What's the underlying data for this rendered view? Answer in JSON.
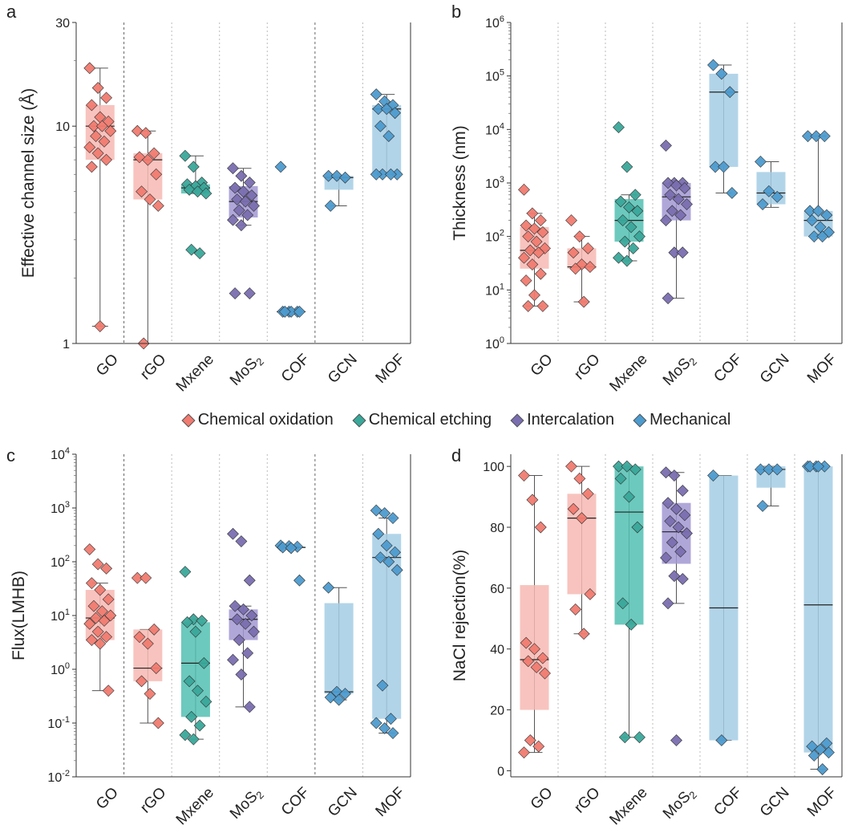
{
  "colors": {
    "chemical_oxidation": "#f07b70",
    "chemical_etching": "#3aa89a",
    "intercalation": "#7a6eb0",
    "mechanical": "#4d9bcf",
    "box_chemical_oxidation": "#f7b8b3",
    "box_chemical_etching": "#52bfb1",
    "box_intercalation": "#a298d2",
    "box_mechanical": "#a5cde4"
  },
  "legend": [
    {
      "label": "Chemical oxidation",
      "method": "chemical_oxidation"
    },
    {
      "label": "Chemical etching",
      "method": "chemical_etching"
    },
    {
      "label": "Intercalation",
      "method": "intercalation"
    },
    {
      "label": "Mechanical",
      "method": "mechanical"
    }
  ],
  "chart_data": [
    {
      "panel": "a",
      "type": "box",
      "ylabel": "Effective channel size (Å)",
      "yscale": "log",
      "ylim": [
        1,
        30
      ],
      "yticks": [
        {
          "v": 1,
          "label": "1"
        },
        {
          "v": 10,
          "label": "10"
        },
        {
          "v": 30,
          "label": "30"
        }
      ],
      "categories": [
        "GO",
        "rGO",
        "Mxene",
        "MoS2",
        "COF",
        "GCN",
        "MOF"
      ],
      "category_methods": [
        "chemical_oxidation",
        "chemical_oxidation",
        "chemical_etching",
        "intercalation",
        "mechanical",
        "mechanical",
        "mechanical"
      ],
      "separators": [
        {
          "after": 0,
          "style": "dashed"
        },
        {
          "after": 1,
          "style": "dotted"
        },
        {
          "after": 2,
          "style": "dotted"
        },
        {
          "after": 3,
          "style": "dotted"
        },
        {
          "after": 4,
          "style": "dashed"
        },
        {
          "after": 5,
          "style": "dotted"
        }
      ],
      "series": [
        {
          "box": [
            7.0,
            10.0,
            12.5
          ],
          "whisker": [
            1.2,
            18.5
          ],
          "points": [
            18.5,
            15.0,
            13.5,
            12.5,
            11.0,
            10.5,
            10.0,
            10.0,
            9.5,
            9.0,
            8.5,
            8.0,
            7.5,
            7.0,
            6.5,
            1.2
          ]
        },
        {
          "box": [
            4.6,
            7.0,
            7.5
          ],
          "whisker": [
            1.0,
            9.5
          ],
          "points": [
            9.5,
            9.3,
            7.5,
            7.2,
            7.0,
            6.0,
            5.0,
            4.6,
            4.3,
            1.0
          ]
        },
        {
          "box": [
            4.9,
            5.2,
            5.4
          ],
          "whisker": [
            4.9,
            7.3
          ],
          "points": [
            7.3,
            6.5,
            5.5,
            5.4,
            5.3,
            5.2,
            5.1,
            5.0,
            4.9,
            2.7,
            2.6
          ]
        },
        {
          "box": [
            3.8,
            4.5,
            5.3
          ],
          "whisker": [
            3.5,
            6.4
          ],
          "points": [
            6.4,
            5.9,
            5.5,
            5.2,
            5.0,
            4.8,
            4.6,
            4.5,
            4.3,
            4.1,
            3.9,
            3.7,
            3.5,
            1.7,
            1.7
          ]
        },
        {
          "box": [
            1.4,
            1.4,
            1.4
          ],
          "whisker": [
            1.4,
            1.4
          ],
          "points": [
            6.5,
            1.4,
            1.4,
            1.4,
            1.4,
            1.4,
            1.4
          ]
        },
        {
          "box": [
            5.1,
            5.8,
            5.9
          ],
          "whisker": [
            4.3,
            5.9
          ],
          "points": [
            5.9,
            5.9,
            5.8,
            4.3
          ]
        },
        {
          "box": [
            6.0,
            12.0,
            12.5
          ],
          "whisker": [
            6.0,
            14.0
          ],
          "points": [
            14.0,
            13.0,
            12.5,
            12.0,
            12.0,
            11.5,
            10.0,
            9.0,
            6.0,
            6.0,
            6.0,
            6.0
          ]
        }
      ]
    },
    {
      "panel": "b",
      "type": "box",
      "ylabel": "Thickness (nm)",
      "yscale": "log",
      "ylim": [
        1,
        1000000
      ],
      "yticks": [
        {
          "v": 1,
          "label": "10",
          "exp": "0"
        },
        {
          "v": 10,
          "label": "10",
          "exp": "1"
        },
        {
          "v": 100,
          "label": "10",
          "exp": "2"
        },
        {
          "v": 1000,
          "label": "10",
          "exp": "3"
        },
        {
          "v": 10000,
          "label": "10",
          "exp": "4"
        },
        {
          "v": 100000,
          "label": "10",
          "exp": "5"
        },
        {
          "v": 1000000,
          "label": "10",
          "exp": "6"
        }
      ],
      "categories": [
        "GO",
        "rGO",
        "Mxene",
        "MoS2",
        "COF",
        "GCN",
        "MOF"
      ],
      "category_methods": [
        "chemical_oxidation",
        "chemical_oxidation",
        "chemical_etching",
        "intercalation",
        "mechanical",
        "mechanical",
        "mechanical"
      ],
      "separators": [
        {
          "after": 0,
          "style": "dotted"
        },
        {
          "after": 1,
          "style": "dotted"
        },
        {
          "after": 2,
          "style": "dotted"
        },
        {
          "after": 3,
          "style": "dotted"
        },
        {
          "after": 4,
          "style": "dotted"
        },
        {
          "after": 5,
          "style": "dotted"
        }
      ],
      "series": [
        {
          "box": [
            25,
            55,
            150
          ],
          "whisker": [
            5,
            270
          ],
          "points": [
            750,
            270,
            200,
            160,
            140,
            120,
            100,
            80,
            60,
            55,
            50,
            40,
            30,
            20,
            15,
            8,
            5,
            5
          ]
        },
        {
          "box": [
            25,
            27,
            60
          ],
          "whisker": [
            6,
            100
          ],
          "points": [
            200,
            100,
            60,
            50,
            30,
            27,
            25,
            6
          ]
        },
        {
          "box": [
            80,
            200,
            500
          ],
          "whisker": [
            35,
            600
          ],
          "points": [
            11000,
            2000,
            600,
            450,
            350,
            300,
            200,
            150,
            100,
            80,
            60,
            40,
            35
          ]
        },
        {
          "box": [
            200,
            550,
            1000
          ],
          "whisker": [
            7,
            1000
          ],
          "points": [
            5000,
            1000,
            1000,
            1000,
            900,
            800,
            600,
            500,
            400,
            300,
            250,
            200,
            50,
            50,
            7
          ]
        },
        {
          "box": [
            2000,
            50000,
            110000
          ],
          "whisker": [
            650,
            160000
          ],
          "points": [
            160000,
            110000,
            50000,
            2000,
            2000,
            650
          ]
        },
        {
          "box": [
            400,
            650,
            1600
          ],
          "whisker": [
            350,
            2500
          ],
          "points": [
            2500,
            700,
            550,
            400
          ]
        },
        {
          "box": [
            100,
            200,
            300
          ],
          "whisker": [
            100,
            7500
          ],
          "points": [
            7500,
            7500,
            7500,
            300,
            300,
            250,
            200,
            150,
            120,
            100,
            100
          ]
        }
      ]
    },
    {
      "panel": "c",
      "type": "box",
      "ylabel": "Flux(LMHB)",
      "yscale": "log",
      "ylim": [
        0.01,
        10000
      ],
      "yticks": [
        {
          "v": 0.01,
          "label": "10",
          "exp": "-2"
        },
        {
          "v": 0.1,
          "label": "10",
          "exp": "-1"
        },
        {
          "v": 1,
          "label": "10",
          "exp": "0"
        },
        {
          "v": 10,
          "label": "10",
          "exp": "1"
        },
        {
          "v": 100,
          "label": "10",
          "exp": "2"
        },
        {
          "v": 1000,
          "label": "10",
          "exp": "3"
        },
        {
          "v": 10000,
          "label": "10",
          "exp": "4"
        }
      ],
      "categories": [
        "GO",
        "rGO",
        "Mxene",
        "MoS2",
        "COF",
        "GCN",
        "MOF"
      ],
      "category_methods": [
        "chemical_oxidation",
        "chemical_oxidation",
        "chemical_etching",
        "intercalation",
        "mechanical",
        "mechanical",
        "mechanical"
      ],
      "separators": [
        {
          "after": 0,
          "style": "dashed"
        },
        {
          "after": 1,
          "style": "dotted"
        },
        {
          "after": 2,
          "style": "dotted"
        },
        {
          "after": 3,
          "style": "dotted"
        },
        {
          "after": 4,
          "style": "dashed"
        },
        {
          "after": 5,
          "style": "dotted"
        }
      ],
      "series": [
        {
          "box": [
            3.5,
            9,
            30
          ],
          "whisker": [
            0.4,
            40
          ],
          "points": [
            170,
            90,
            75,
            40,
            30,
            20,
            15,
            12,
            10,
            9,
            8,
            7,
            5,
            4,
            3.5,
            3,
            0.4
          ]
        },
        {
          "box": [
            0.6,
            1.05,
            5.5
          ],
          "whisker": [
            0.1,
            5.5
          ],
          "points": [
            50,
            50,
            5.5,
            4,
            3,
            1.05,
            0.6,
            0.35,
            0.1
          ]
        },
        {
          "box": [
            0.13,
            1.3,
            7.5
          ],
          "whisker": [
            0.05,
            8.5
          ],
          "points": [
            65,
            8.5,
            8,
            7.5,
            5,
            1.3,
            0.6,
            0.4,
            0.25,
            0.13,
            0.09,
            0.06,
            0.05
          ]
        },
        {
          "box": [
            3.5,
            8.5,
            13
          ],
          "whisker": [
            0.2,
            15
          ],
          "points": [
            330,
            240,
            45,
            15,
            13,
            10,
            8.5,
            7,
            5,
            3.5,
            2,
            1.5,
            0.8,
            0.2
          ]
        },
        {
          "box": [
            180,
            185,
            190
          ],
          "whisker": [
            180,
            190
          ],
          "points": [
            200,
            195,
            190,
            185,
            180,
            45
          ]
        },
        {
          "box": [
            0.35,
            0.38,
            17
          ],
          "whisker": [
            0.27,
            33
          ],
          "points": [
            33,
            0.38,
            0.35,
            0.3,
            0.27
          ]
        },
        {
          "box": [
            0.12,
            120,
            330
          ],
          "whisker": [
            0.065,
            650
          ],
          "points": [
            900,
            800,
            650,
            330,
            200,
            150,
            120,
            100,
            70,
            0.5,
            0.12,
            0.1,
            0.08,
            0.065
          ]
        }
      ]
    },
    {
      "panel": "d",
      "type": "box",
      "ylabel": "NaCl rejection(%)",
      "yscale": "linear",
      "ylim": [
        -2,
        104
      ],
      "yticks": [
        {
          "v": 0,
          "label": "0"
        },
        {
          "v": 20,
          "label": "20"
        },
        {
          "v": 40,
          "label": "40"
        },
        {
          "v": 60,
          "label": "60"
        },
        {
          "v": 80,
          "label": "80"
        },
        {
          "v": 100,
          "label": "100"
        }
      ],
      "categories": [
        "GO",
        "rGO",
        "Mxene",
        "MoS2",
        "COF",
        "GCN",
        "MOF"
      ],
      "category_methods": [
        "chemical_oxidation",
        "chemical_oxidation",
        "chemical_etching",
        "intercalation",
        "mechanical",
        "mechanical",
        "mechanical"
      ],
      "separators": [
        {
          "after": 0,
          "style": "dotted"
        },
        {
          "after": 1,
          "style": "dotted"
        },
        {
          "after": 2,
          "style": "dotted"
        },
        {
          "after": 3,
          "style": "dotted"
        },
        {
          "after": 4,
          "style": "dotted"
        },
        {
          "after": 5,
          "style": "dotted"
        }
      ],
      "series": [
        {
          "box": [
            20,
            36.5,
            61
          ],
          "whisker": [
            6,
            97
          ],
          "points": [
            97,
            89,
            80,
            42,
            40,
            37,
            36,
            34,
            32,
            10,
            8,
            6
          ]
        },
        {
          "box": [
            58,
            83,
            91
          ],
          "whisker": [
            45,
            100
          ],
          "points": [
            100,
            96,
            91,
            86,
            83,
            58,
            53,
            45
          ]
        },
        {
          "box": [
            48,
            85,
            100
          ],
          "whisker": [
            11,
            100
          ],
          "points": [
            100,
            100,
            99,
            96,
            90,
            80,
            55,
            48,
            11,
            11
          ]
        },
        {
          "box": [
            68,
            78.5,
            88
          ],
          "whisker": [
            55,
            98
          ],
          "points": [
            98,
            97,
            92,
            88,
            86,
            84,
            82,
            80,
            78,
            75,
            72,
            70,
            64,
            63,
            55,
            10
          ]
        },
        {
          "box": [
            10,
            53.5,
            97
          ],
          "whisker": [
            10,
            97
          ],
          "points": [
            97,
            10
          ]
        },
        {
          "box": [
            93,
            99,
            100
          ],
          "whisker": [
            87,
            100
          ],
          "points": [
            99,
            99,
            99,
            87
          ]
        },
        {
          "box": [
            6,
            54.5,
            100
          ],
          "whisker": [
            0.5,
            100
          ],
          "points": [
            100,
            100,
            100,
            100,
            100,
            9,
            8,
            7,
            6,
            5,
            0.5
          ]
        }
      ]
    }
  ]
}
